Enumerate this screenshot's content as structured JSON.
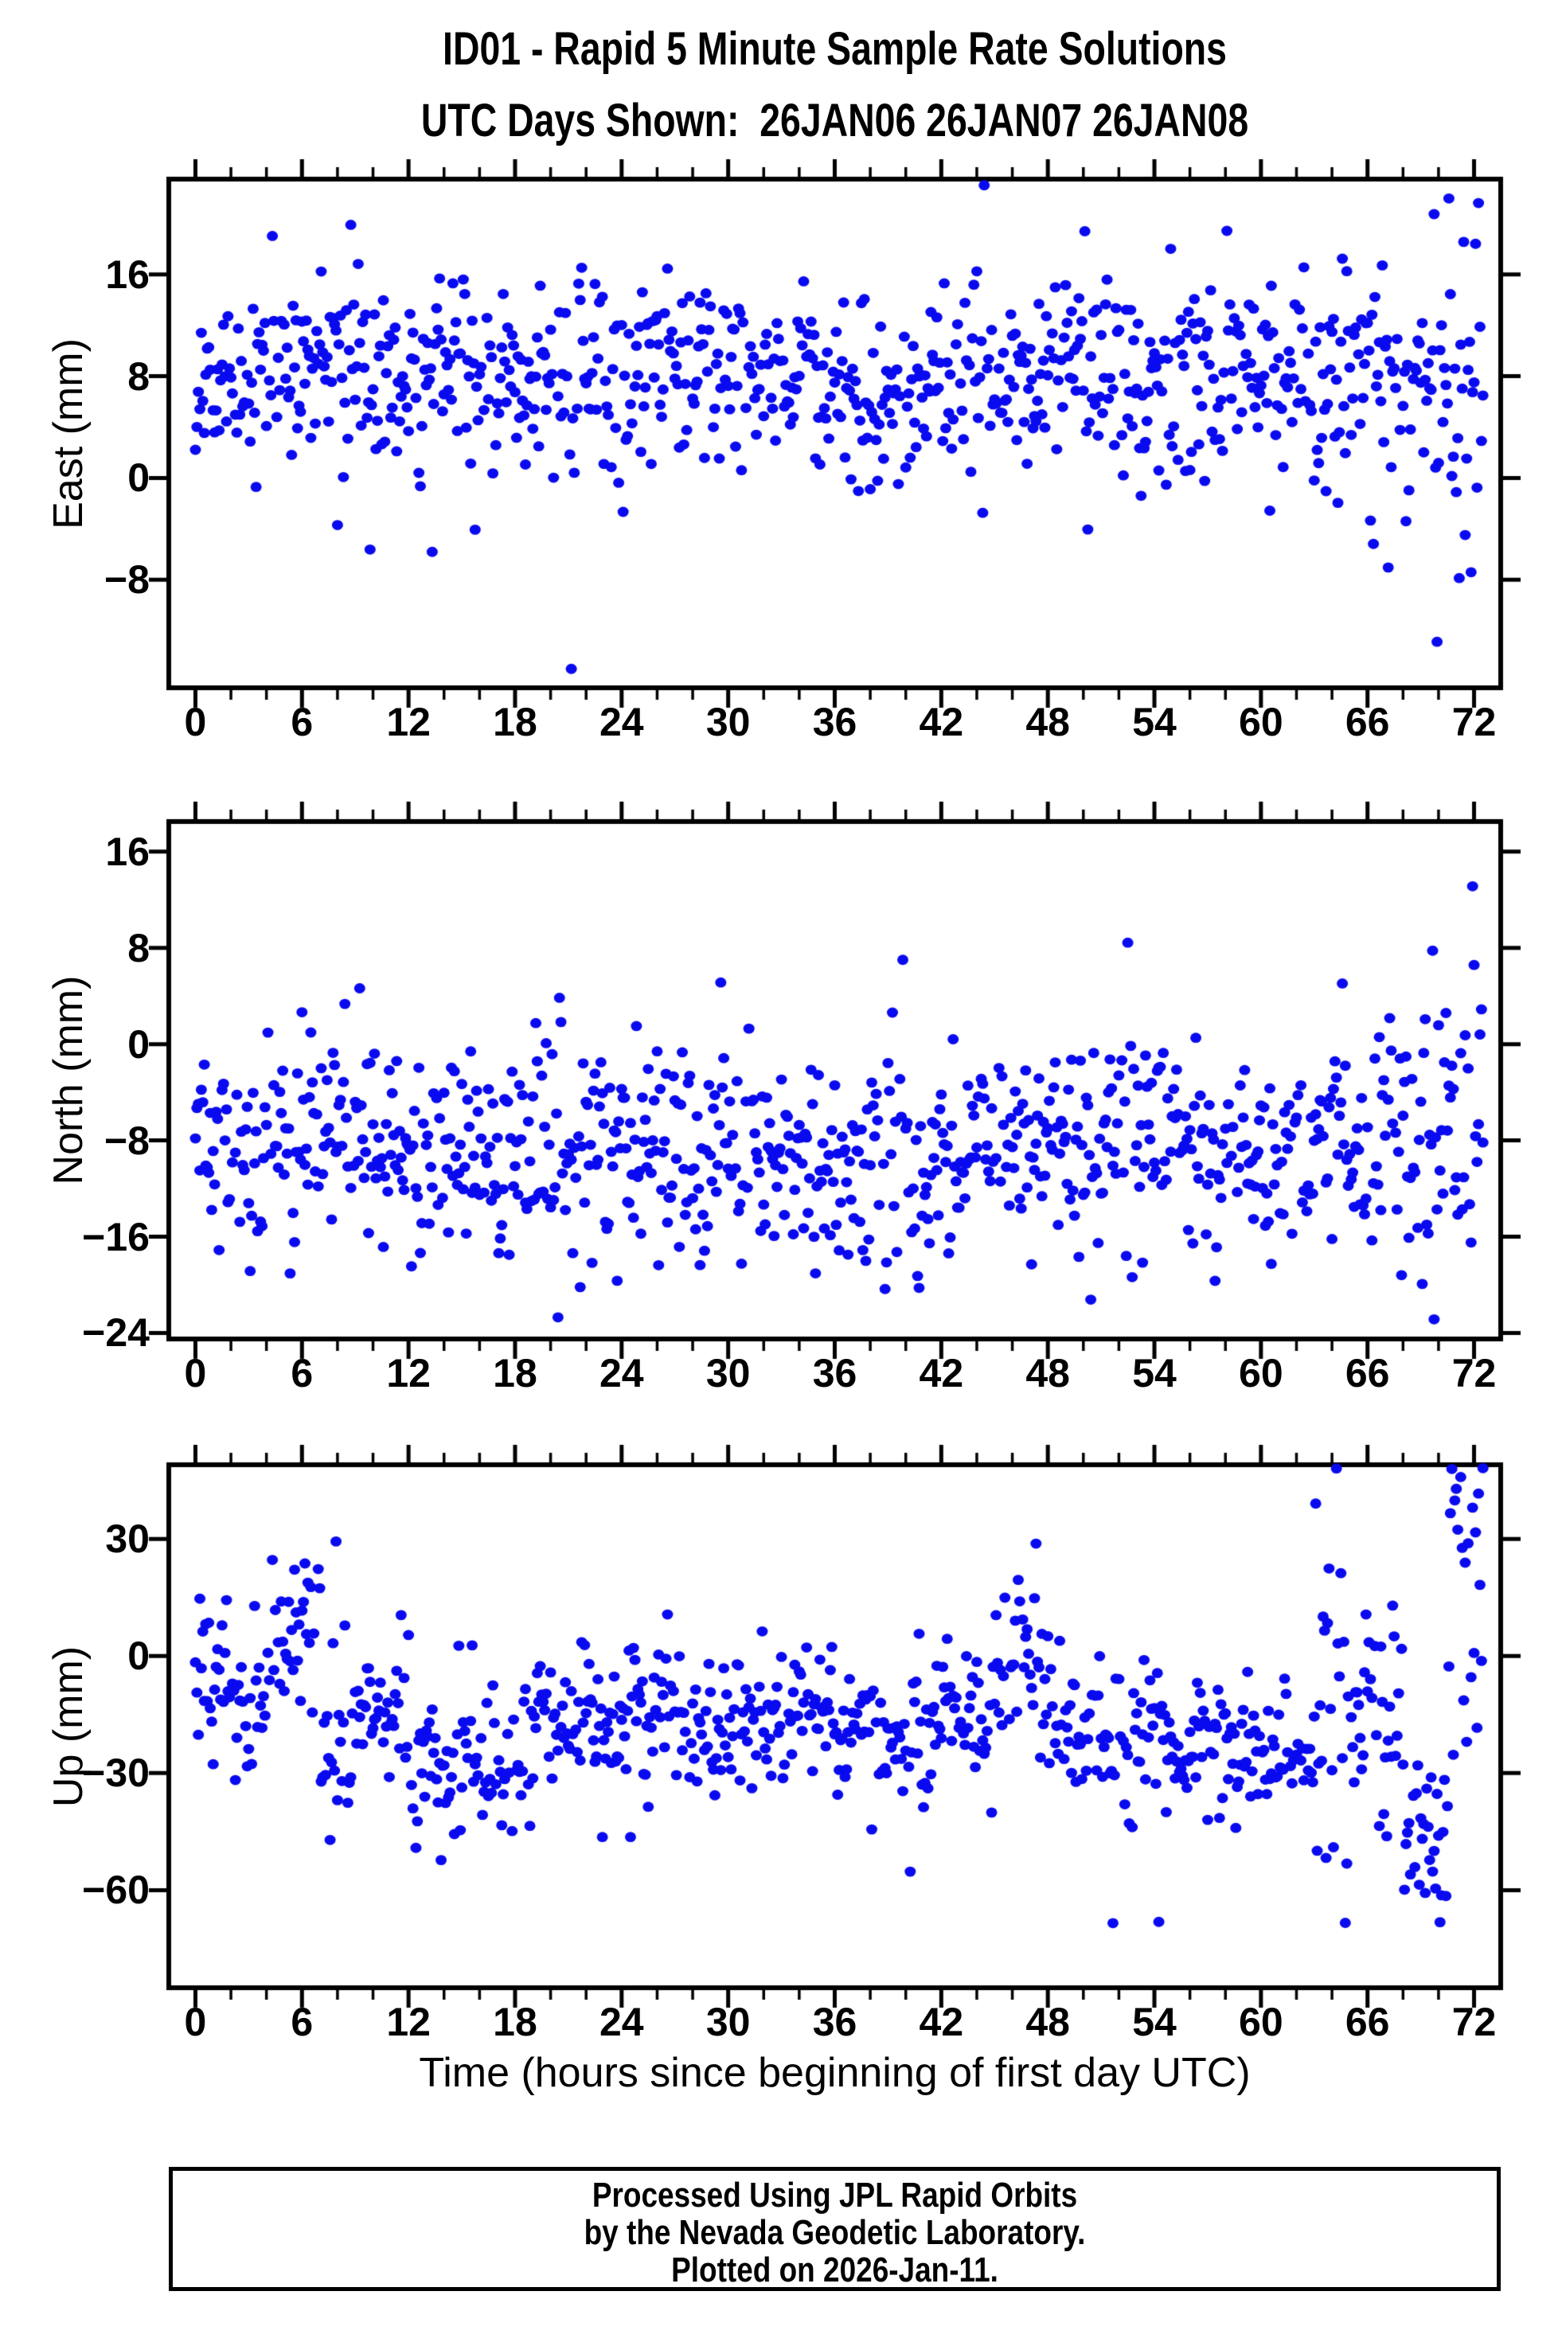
{
  "figure": {
    "background_color": "#ffffff",
    "frame_color": "#000000",
    "point_color": "#0a0af0"
  },
  "title": {
    "line1": "ID01 - Rapid 5 Minute Sample Rate Solutions",
    "line2": "UTC Days Shown:  26JAN06 26JAN07 26JAN08"
  },
  "x_axis": {
    "label": "Time (hours since beginning of first day UTC)",
    "range": [
      -1.5,
      73.5
    ],
    "major_ticks": [
      0,
      6,
      12,
      18,
      24,
      30,
      36,
      42,
      48,
      54,
      60,
      66,
      72
    ],
    "tick_labels": [
      "0",
      "6",
      "12",
      "18",
      "24",
      "30",
      "36",
      "42",
      "48",
      "54",
      "60",
      "66",
      "72"
    ],
    "minor_step_hours": 2,
    "units": "hours"
  },
  "footer": {
    "line1": "Processed Using JPL Rapid Orbits",
    "line2": "by the Nevada Geodetic Laboratory.",
    "line3": "Plotted on 2026-Jan-11."
  },
  "chart_data": [
    {
      "type": "scatter",
      "component": "East",
      "ylabel": "East (mm)",
      "ylim": [
        -16.5,
        23.5
      ],
      "yticks": [
        16,
        8,
        0,
        -8
      ],
      "ytick_labels": [
        "16",
        "8",
        "0",
        "−8"
      ],
      "sampling_minutes": 5,
      "approx_point_count": 820,
      "marker": {
        "shape": "circle",
        "radius_px": 7
      },
      "points_spec": {
        "seed": 20260111,
        "t_start": 0,
        "t_end": 72.58,
        "step_hours": 0.0833333,
        "drop_rate": 0.06,
        "outlier": {
          "prob": 0.028,
          "std_mult": 2.2
        },
        "segments": [
          [
            0,
            3,
            7.0,
            3.4
          ],
          [
            3,
            9,
            8.8,
            3.8
          ],
          [
            9,
            15,
            8.6,
            3.9
          ],
          [
            15,
            21,
            8.3,
            3.9
          ],
          [
            21,
            24,
            7.0,
            4.6
          ],
          [
            24,
            30,
            7.6,
            3.9
          ],
          [
            30,
            36,
            8.0,
            3.9
          ],
          [
            36,
            42,
            7.0,
            3.6
          ],
          [
            42,
            48,
            7.2,
            3.7
          ],
          [
            48,
            54,
            8.4,
            4.0
          ],
          [
            54,
            60,
            8.2,
            4.1
          ],
          [
            60,
            66,
            7.8,
            4.2
          ],
          [
            66,
            69.5,
            7.5,
            4.3
          ],
          [
            69.5,
            72.6,
            7.0,
            9.0
          ]
        ]
      }
    },
    {
      "type": "scatter",
      "component": "North",
      "ylabel": "North (mm)",
      "ylim": [
        -24.5,
        18.5
      ],
      "yticks": [
        16,
        8,
        0,
        -8,
        -16,
        -24
      ],
      "ytick_labels": [
        "16",
        "8",
        "0",
        "−8",
        "−16",
        "−24"
      ],
      "sampling_minutes": 5,
      "approx_point_count": 820,
      "marker": {
        "shape": "circle",
        "radius_px": 7
      },
      "points_spec": {
        "seed": 714025,
        "t_start": 0,
        "t_end": 72.58,
        "step_hours": 0.0833333,
        "drop_rate": 0.06,
        "outlier": {
          "prob": 0.028,
          "std_mult": 2.2
        },
        "segments": [
          [
            0,
            6,
            -7.6,
            3.9
          ],
          [
            6,
            10,
            -7.6,
            4.8
          ],
          [
            10,
            13,
            -8.6,
            4.1
          ],
          [
            13,
            19,
            -9.2,
            4.4
          ],
          [
            19,
            22,
            -6.0,
            5.6
          ],
          [
            22,
            30,
            -9.0,
            4.4
          ],
          [
            30,
            36,
            -9.6,
            4.4
          ],
          [
            36,
            42,
            -10.0,
            4.2
          ],
          [
            42,
            48,
            -9.0,
            4.1
          ],
          [
            48,
            54,
            -7.6,
            4.4
          ],
          [
            54,
            60,
            -8.6,
            3.9
          ],
          [
            60,
            66,
            -8.8,
            4.0
          ],
          [
            66,
            69,
            -8.0,
            5.0
          ],
          [
            69,
            72.6,
            -5.5,
            8.5
          ]
        ]
      }
    },
    {
      "type": "scatter",
      "component": "Up",
      "ylabel": "Up (mm)",
      "ylim": [
        -85,
        49
      ],
      "yticks": [
        30,
        0,
        -30,
        -60
      ],
      "ytick_labels": [
        "30",
        "0",
        "−30",
        "−60"
      ],
      "sampling_minutes": 5,
      "approx_point_count": 820,
      "marker": {
        "shape": "circle",
        "radius_px": 7
      },
      "points_spec": {
        "seed": 90817,
        "t_start": 0,
        "t_end": 72.58,
        "step_hours": 0.0833333,
        "drop_rate": 0.06,
        "outlier": {
          "prob": 0.02,
          "std_mult": 1.8
        },
        "segments": [
          [
            0,
            2,
            -8,
            10
          ],
          [
            2,
            4,
            -12,
            10
          ],
          [
            4,
            5.5,
            -2,
            10
          ],
          [
            5.5,
            7,
            8,
            11
          ],
          [
            7,
            9,
            -18,
            14
          ],
          [
            9,
            12,
            -12,
            9
          ],
          [
            12,
            16,
            -26,
            10
          ],
          [
            16,
            19,
            -24,
            11
          ],
          [
            19,
            24,
            -15,
            9
          ],
          [
            24,
            27,
            -14,
            10
          ],
          [
            27,
            30,
            -22,
            10
          ],
          [
            30,
            36,
            -15,
            9
          ],
          [
            36,
            42,
            -20,
            9
          ],
          [
            42,
            45,
            -15,
            9
          ],
          [
            45,
            48,
            -5,
            11
          ],
          [
            48,
            54,
            -20,
            10
          ],
          [
            54,
            60,
            -23,
            9
          ],
          [
            60,
            63,
            -24,
            8
          ],
          [
            63,
            65.5,
            -15,
            28
          ],
          [
            65.5,
            68,
            -15,
            16
          ],
          [
            68,
            70.5,
            -45,
            18
          ],
          [
            70.5,
            72.6,
            8,
            28
          ]
        ]
      }
    }
  ]
}
